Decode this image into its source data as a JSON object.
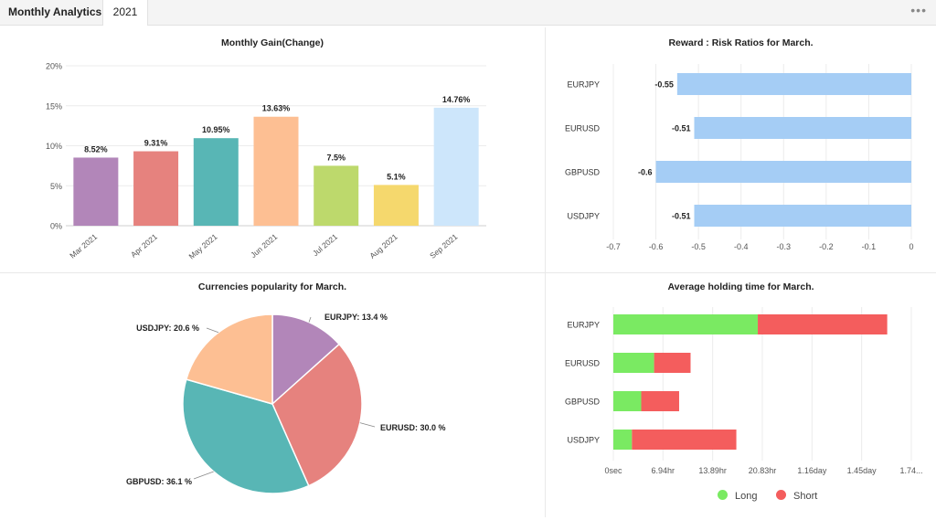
{
  "header": {
    "title": "Monthly Analytics",
    "tab_year": "2021",
    "menu_icon": "more-dots-icon",
    "menu_glyph": "•••"
  },
  "colors": {
    "purple": "#b286b9",
    "red": "#e6827e",
    "teal": "#58b6b5",
    "peach": "#fdbf93",
    "lime": "#bdd96c",
    "yellow": "#f5d86d",
    "lightblue": "#cde6fb",
    "bar_blue": "#a5cdf5",
    "long": "#7aea62",
    "short": "#f45d5d"
  },
  "chart_data": [
    {
      "id": "monthly-gain",
      "type": "bar",
      "title": "Monthly Gain(Change)",
      "categories": [
        "Mar 2021",
        "Apr 2021",
        "May 2021",
        "Jun 2021",
        "Jul 2021",
        "Aug 2021",
        "Sep 2021"
      ],
      "values": [
        8.52,
        9.31,
        10.95,
        13.63,
        7.5,
        5.1,
        14.76
      ],
      "data_labels": [
        "8.52%",
        "9.31%",
        "10.95%",
        "13.63%",
        "7.5%",
        "5.1%",
        "14.76%"
      ],
      "bar_colors": [
        "#b286b9",
        "#e6827e",
        "#58b6b5",
        "#fdbf93",
        "#bdd96c",
        "#f5d86d",
        "#cde6fb"
      ],
      "yticks": [
        0,
        5,
        10,
        15,
        20
      ],
      "ytick_labels": [
        "0%",
        "5%",
        "10%",
        "15%",
        "20%"
      ],
      "ylim": [
        0,
        20
      ],
      "grid": true
    },
    {
      "id": "reward-risk",
      "type": "bar",
      "orientation": "horizontal",
      "title": "Reward : Risk Ratios for March.",
      "categories": [
        "EURJPY",
        "EURUSD",
        "GBPUSD",
        "USDJPY"
      ],
      "values": [
        -0.55,
        -0.51,
        -0.6,
        -0.51
      ],
      "data_labels": [
        "-0.55",
        "-0.51",
        "-0.6",
        "-0.51"
      ],
      "xticks": [
        -0.7,
        -0.6,
        -0.5,
        -0.4,
        -0.3,
        -0.2,
        -0.1,
        0
      ],
      "xtick_labels": [
        "-0.7",
        "-0.6",
        "-0.5",
        "-0.4",
        "-0.3",
        "-0.2",
        "-0.1",
        "0"
      ],
      "xlim": [
        -0.7,
        0
      ],
      "grid": true
    },
    {
      "id": "currency-popularity",
      "type": "pie",
      "title": "Currencies popularity for March.",
      "labels": [
        "EURJPY",
        "EURUSD",
        "GBPUSD",
        "USDJPY"
      ],
      "values": [
        13.4,
        30.0,
        36.1,
        20.6
      ],
      "data_labels": [
        "EURJPY: 13.4 %",
        "EURUSD: 30.0 %",
        "GBPUSD: 36.1 %",
        "USDJPY: 20.6 %"
      ],
      "colors": [
        "#b286b9",
        "#e6827e",
        "#58b6b5",
        "#fdbf93"
      ]
    },
    {
      "id": "holding-time",
      "type": "bar",
      "orientation": "horizontal",
      "stacked": true,
      "title": "Average holding time for March.",
      "categories": [
        "EURJPY",
        "EURUSD",
        "GBPUSD",
        "USDJPY"
      ],
      "series": [
        {
          "name": "Long",
          "values": [
            20.2,
            5.7,
            3.9,
            2.6
          ]
        },
        {
          "name": "Short",
          "values": [
            18.1,
            5.1,
            5.3,
            14.6
          ]
        }
      ],
      "xticks": [
        0,
        6.94,
        13.89,
        20.83,
        27.78,
        34.72,
        41.67
      ],
      "xtick_labels": [
        "0sec",
        "6.94hr",
        "13.89hr",
        "20.83hr",
        "1.16day",
        "1.45day",
        "1.74..."
      ],
      "xlim": [
        0,
        41.67
      ],
      "grid": true,
      "legend": "bottom"
    }
  ]
}
